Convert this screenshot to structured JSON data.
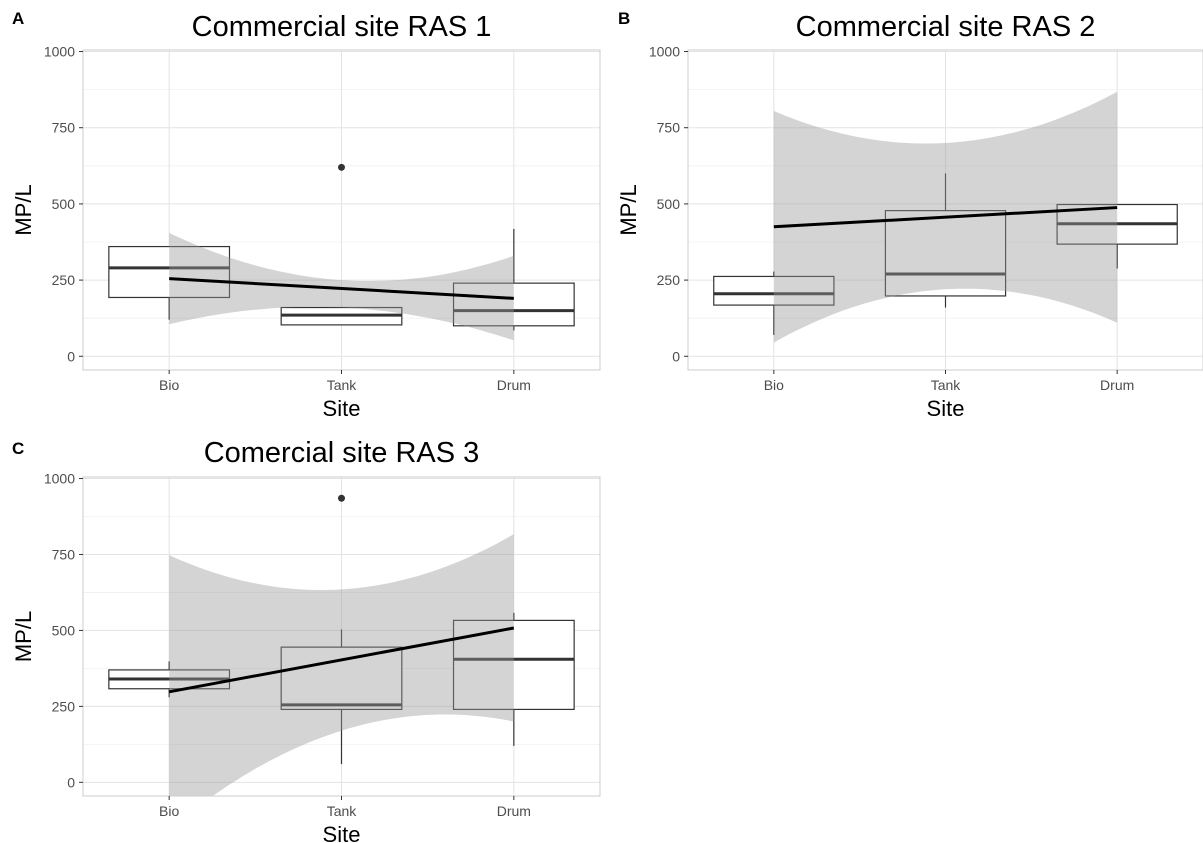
{
  "figure": {
    "panels": [
      "A",
      "B",
      "C"
    ]
  },
  "chart_data": [
    {
      "tag": "A",
      "type": "box",
      "title": "Commercial site RAS 1",
      "xlabel": "Site",
      "ylabel": "MP/L",
      "categories": [
        "Bio",
        "Tank",
        "Drum"
      ],
      "ylim": [
        -45,
        1005
      ],
      "yticks": [
        0,
        250,
        500,
        750,
        1000
      ],
      "grid": true,
      "boxes": [
        {
          "category": "Bio",
          "lower_whisker": 120,
          "q1": 193,
          "median": 290,
          "q3": 360,
          "upper_whisker": 360,
          "outliers": []
        },
        {
          "category": "Tank",
          "lower_whisker": 103,
          "q1": 103,
          "median": 135,
          "q3": 160,
          "upper_whisker": 160,
          "outliers": [
            620
          ]
        },
        {
          "category": "Drum",
          "lower_whisker": 85,
          "q1": 100,
          "median": 150,
          "q3": 240,
          "upper_whisker": 418,
          "outliers": []
        }
      ],
      "trend": {
        "start": 255,
        "end": 190,
        "ci_lower": [
          105,
          160,
          52
        ],
        "ci_upper": [
          405,
          250,
          330
        ]
      },
      "colors": {
        "ci_band": "#d3d3d3",
        "trend": "#000000",
        "box": "#333333"
      }
    },
    {
      "tag": "B",
      "type": "box",
      "title": "Commercial site RAS 2",
      "xlabel": "Site",
      "ylabel": "MP/L",
      "categories": [
        "Bio",
        "Tank",
        "Drum"
      ],
      "ylim": [
        -45,
        1005
      ],
      "yticks": [
        0,
        250,
        500,
        750,
        1000
      ],
      "grid": true,
      "boxes": [
        {
          "category": "Bio",
          "lower_whisker": 70,
          "q1": 168,
          "median": 205,
          "q3": 262,
          "upper_whisker": 278,
          "outliers": []
        },
        {
          "category": "Tank",
          "lower_whisker": 160,
          "q1": 198,
          "median": 270,
          "q3": 478,
          "upper_whisker": 600,
          "outliers": []
        },
        {
          "category": "Drum",
          "lower_whisker": 288,
          "q1": 368,
          "median": 435,
          "q3": 498,
          "upper_whisker": 498,
          "outliers": []
        }
      ],
      "trend": {
        "start": 425,
        "end": 488,
        "ci_lower": [
          45,
          220,
          110
        ],
        "ci_upper": [
          805,
          700,
          868
        ]
      },
      "colors": {
        "ci_band": "#d3d3d3",
        "trend": "#000000",
        "box": "#333333"
      }
    },
    {
      "tag": "C",
      "type": "box",
      "title": "Comercial site RAS 3",
      "xlabel": "Site",
      "ylabel": "MP/L",
      "categories": [
        "Bio",
        "Tank",
        "Drum"
      ],
      "ylim": [
        -45,
        1005
      ],
      "yticks": [
        0,
        250,
        500,
        750,
        1000
      ],
      "grid": true,
      "boxes": [
        {
          "category": "Bio",
          "lower_whisker": 280,
          "q1": 308,
          "median": 340,
          "q3": 370,
          "upper_whisker": 398,
          "outliers": []
        },
        {
          "category": "Tank",
          "lower_whisker": 60,
          "q1": 240,
          "median": 255,
          "q3": 445,
          "upper_whisker": 503,
          "outliers": [
            935
          ]
        },
        {
          "category": "Drum",
          "lower_whisker": 120,
          "q1": 240,
          "median": 405,
          "q3": 533,
          "upper_whisker": 558,
          "outliers": []
        }
      ],
      "trend": {
        "start": 298,
        "end": 508,
        "ci_lower": [
          -155,
          170,
          200
        ],
        "ci_upper": [
          748,
          635,
          817
        ]
      },
      "colors": {
        "ci_band": "#d3d3d3",
        "trend": "#000000",
        "box": "#333333"
      }
    }
  ]
}
